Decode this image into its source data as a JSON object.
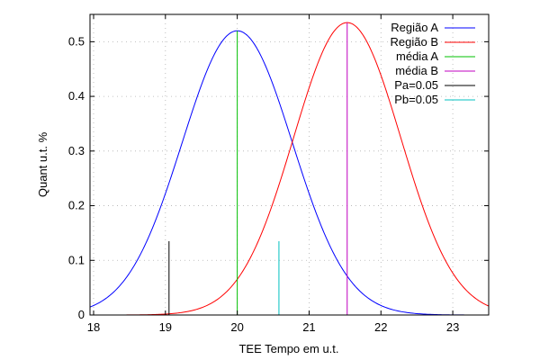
{
  "chart_data": {
    "type": "line",
    "xlabel": "TEE   Tempo em u.t.",
    "ylabel": "Quant u.t. %",
    "xlim": [
      17.95,
      23.5
    ],
    "ylim": [
      0,
      0.55
    ],
    "xticks": [
      18,
      19,
      20,
      21,
      22,
      23
    ],
    "yticks": [
      0,
      0.1,
      0.2,
      0.3,
      0.4,
      0.5
    ],
    "grid": true,
    "legend_position": "top-right",
    "series": [
      {
        "name": "Região A",
        "kind": "curve",
        "color": "#0000ff",
        "mean": 20.0,
        "peak": 0.52,
        "sd": 0.767
      },
      {
        "name": "Região B",
        "kind": "curve",
        "color": "#ff0000",
        "mean": 21.53,
        "peak": 0.535,
        "sd": 0.746
      },
      {
        "name": "média A",
        "kind": "vline",
        "color": "#00c000",
        "x": 20.0,
        "y": [
          0,
          0.52
        ]
      },
      {
        "name": "média B",
        "kind": "vline",
        "color": "#c000c0",
        "x": 21.53,
        "y": [
          0,
          0.535
        ]
      },
      {
        "name": "Pa=0.05",
        "kind": "vline",
        "color": "#000000",
        "x": 19.05,
        "y": [
          0,
          0.135
        ]
      },
      {
        "name": "Pb=0.05",
        "kind": "vline",
        "color": "#00c0c0",
        "x": 20.58,
        "y": [
          0,
          0.135
        ]
      }
    ]
  }
}
